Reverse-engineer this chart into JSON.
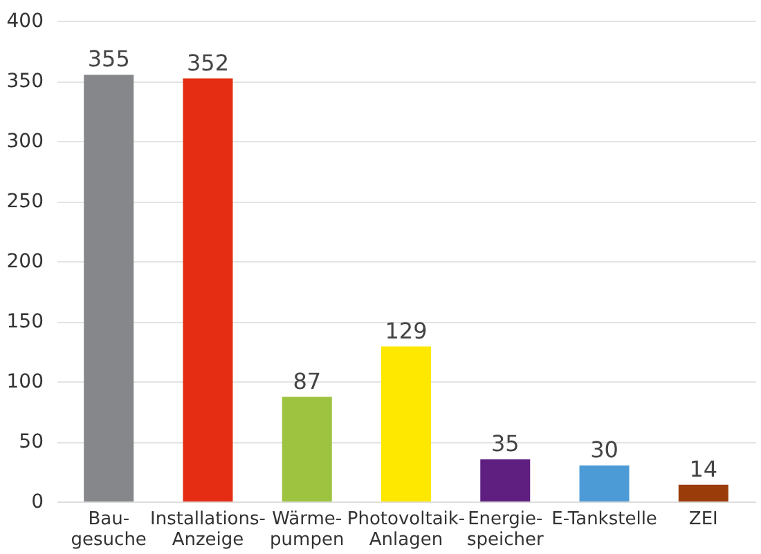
{
  "chart_data": {
    "type": "bar",
    "categories": [
      "Bau-\ngesuche",
      "Installations-\nAnzeige",
      "Wärme-\npumpen",
      "Photovoltaik-\nAnlagen",
      "Energie-\nspeicher",
      "E-Tankstelle",
      "ZEI"
    ],
    "values": [
      355,
      352,
      87,
      129,
      35,
      30,
      14
    ],
    "colors": [
      "#86878b",
      "#e42d12",
      "#9dc341",
      "#ffe800",
      "#5f1f80",
      "#4d9bd6",
      "#9a3c0a"
    ],
    "ylim": [
      0,
      400
    ],
    "yticks": [
      0,
      50,
      100,
      150,
      200,
      250,
      300,
      350,
      400
    ],
    "grid": "y",
    "data_labels": true
  }
}
